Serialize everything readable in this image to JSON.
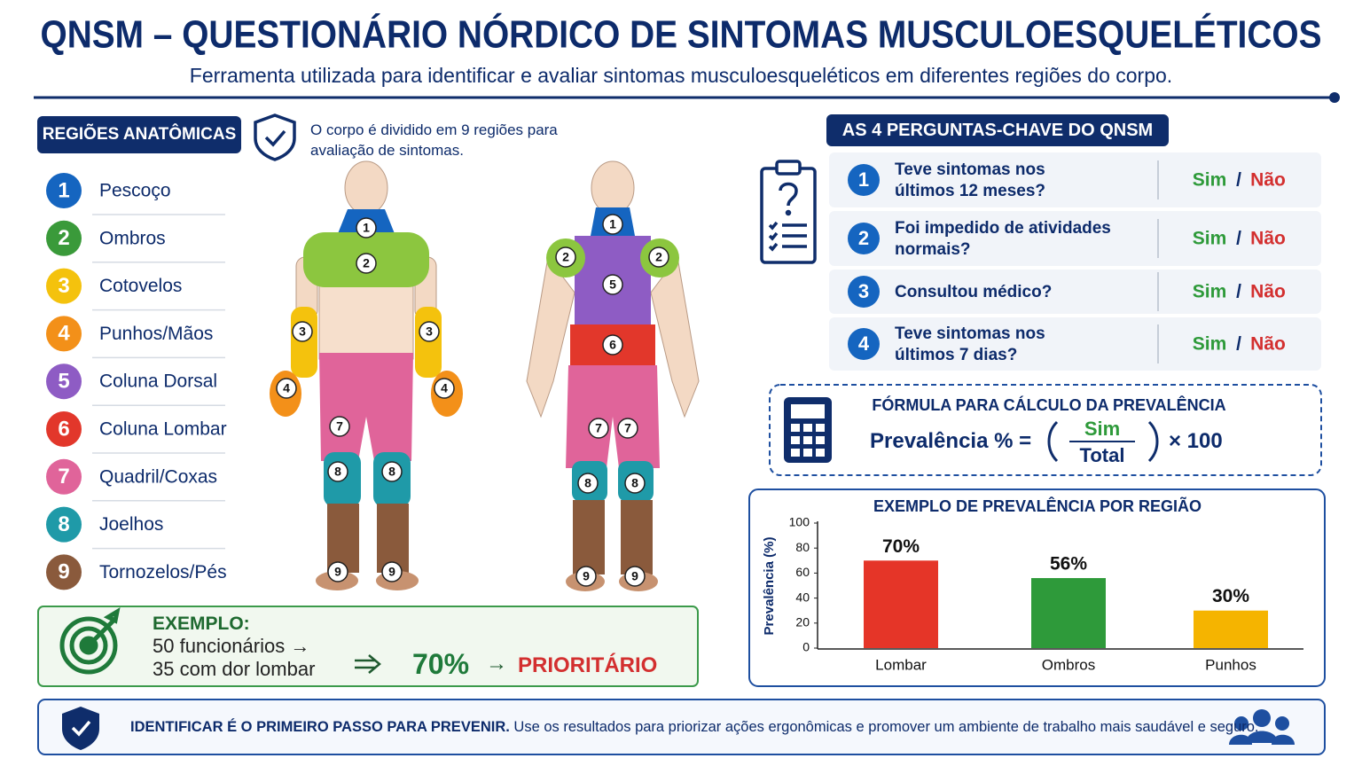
{
  "header": {
    "title": "QNSM – QUESTIONÁRIO NÓRDICO DE SINTOMAS MUSCULOESQUELÉTICOS",
    "subtitle": "Ferramenta utilizada para identificar e avaliar sintomas musculoesqueléticos em diferentes regiões do corpo."
  },
  "regions": {
    "title": "REGIÕES ANATÔMICAS",
    "note": "O corpo é dividido em 9 regiões para avaliação de sintomas.",
    "items": [
      {
        "number": 1,
        "label": "Pescoço",
        "color": "#1565c0"
      },
      {
        "number": 2,
        "label": "Ombros",
        "color": "#3a9a3a"
      },
      {
        "number": 3,
        "label": "Cotovelos",
        "color": "#f4c20d"
      },
      {
        "number": 4,
        "label": "Punhos/Mãos",
        "color": "#f39019"
      },
      {
        "number": 5,
        "label": "Coluna Dorsal",
        "color": "#8e5cc4"
      },
      {
        "number": 6,
        "label": "Coluna Lombar",
        "color": "#e2372b"
      },
      {
        "number": 7,
        "label": "Quadril/Coxas",
        "color": "#e0649a"
      },
      {
        "number": 8,
        "label": "Joelhos",
        "color": "#1f9aa8"
      },
      {
        "number": 9,
        "label": "Tornozelos/Pés",
        "color": "#8a5a3c"
      }
    ]
  },
  "questions": {
    "title": "AS 4 PERGUNTAS-CHAVE DO QNSM",
    "answer_yes": "Sim",
    "answer_sep": "/",
    "answer_no": "Não",
    "items": [
      {
        "number": 1,
        "lines": [
          "Teve sintomas nos",
          "últimos 12 meses?"
        ]
      },
      {
        "number": 2,
        "lines": [
          "Foi impedido de atividades",
          "normais?"
        ]
      },
      {
        "number": 3,
        "lines": [
          "Consultou médico?"
        ]
      },
      {
        "number": 4,
        "lines": [
          "Teve sintomas nos",
          "últimos 7 dias?"
        ]
      }
    ]
  },
  "formula": {
    "title": "FÓRMULA PARA CÁLCULO DA PREVALÊNCIA",
    "lhs": "Prevalência % =",
    "numerator": "Sim",
    "denominator": "Total",
    "factor": "× 100"
  },
  "example": {
    "title": "EXEMPLO:",
    "line1": "50 funcionários →",
    "line2": "35 com dor lombar",
    "result": "70%",
    "arrow": "→",
    "priority": "PRIORITÁRIO"
  },
  "footer": {
    "emphasis": "IDENTIFICAR É O PRIMEIRO PASSO PARA PREVENIR.",
    "text": "Use os resultados para priorizar ações ergonômicas e promover um ambiente de trabalho mais saudável e seguro."
  },
  "chart_data": {
    "type": "bar",
    "title": "EXEMPLO DE PREVALÊNCIA POR REGIÃO",
    "y_label": "Prevalência (%)",
    "categories": [
      "Lombar",
      "Ombros",
      "Punhos"
    ],
    "values": [
      70,
      56,
      30
    ],
    "value_labels": [
      "70%",
      "56%",
      "30%"
    ],
    "colors": [
      "#e53528",
      "#2e9a3a",
      "#f5b400"
    ],
    "ylim": [
      0,
      100
    ],
    "yticks": [
      0,
      20,
      40,
      60,
      80,
      100
    ]
  }
}
